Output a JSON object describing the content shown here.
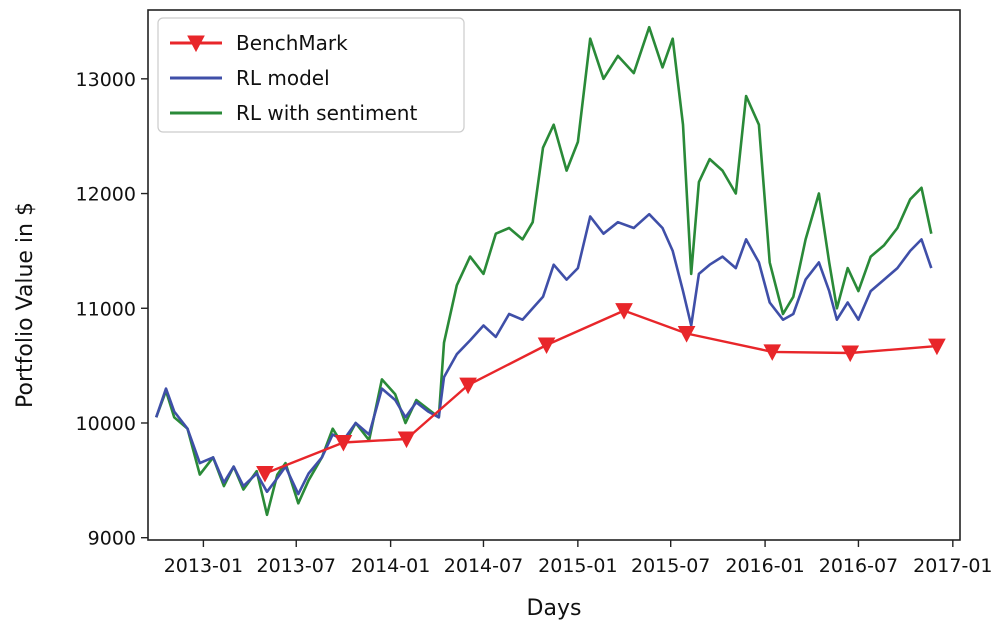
{
  "chart_data": {
    "type": "line",
    "title": "",
    "xlabel": "Days",
    "ylabel": "Portfolio Value in $",
    "x_ticks": [
      "2013-01",
      "2013-07",
      "2014-01",
      "2014-07",
      "2015-01",
      "2015-07",
      "2016-01",
      "2016-07",
      "2017-01"
    ],
    "y_ticks": [
      9000,
      10000,
      11000,
      12000,
      13000
    ],
    "xlim": [
      "2012-09-15",
      "2017-01-15"
    ],
    "ylim": [
      8980,
      13600
    ],
    "grid": false,
    "legend_position": "top-left",
    "series": [
      {
        "name": "BenchMark",
        "color": "#e8262a",
        "marker": "triangle-down",
        "points": [
          [
            "2013-05-01",
            9560
          ],
          [
            "2013-10-01",
            9830
          ],
          [
            "2014-02-01",
            9860
          ],
          [
            "2014-06-01",
            10330
          ],
          [
            "2014-11-01",
            10680
          ],
          [
            "2015-04-01",
            10980
          ],
          [
            "2015-08-01",
            10780
          ],
          [
            "2016-01-15",
            10620
          ],
          [
            "2016-06-15",
            10610
          ],
          [
            "2016-12-01",
            10670
          ]
        ]
      },
      {
        "name": "RL model",
        "color": "#3f4fa8",
        "marker": "none",
        "points": [
          [
            "2012-10-01",
            10050
          ],
          [
            "2012-10-20",
            10300
          ],
          [
            "2012-11-05",
            10100
          ],
          [
            "2012-12-01",
            9950
          ],
          [
            "2012-12-25",
            9650
          ],
          [
            "2013-01-20",
            9700
          ],
          [
            "2013-02-10",
            9480
          ],
          [
            "2013-03-01",
            9620
          ],
          [
            "2013-03-20",
            9450
          ],
          [
            "2013-04-15",
            9560
          ],
          [
            "2013-05-05",
            9400
          ],
          [
            "2013-05-25",
            9520
          ],
          [
            "2013-06-10",
            9620
          ],
          [
            "2013-07-05",
            9380
          ],
          [
            "2013-07-25",
            9560
          ],
          [
            "2013-08-20",
            9700
          ],
          [
            "2013-09-10",
            9900
          ],
          [
            "2013-10-01",
            9850
          ],
          [
            "2013-10-25",
            10000
          ],
          [
            "2013-11-20",
            9900
          ],
          [
            "2013-12-15",
            10300
          ],
          [
            "2014-01-10",
            10200
          ],
          [
            "2014-01-30",
            10050
          ],
          [
            "2014-02-20",
            10180
          ],
          [
            "2014-03-15",
            10100
          ],
          [
            "2014-04-05",
            10050
          ],
          [
            "2014-04-15",
            10400
          ],
          [
            "2014-05-10",
            10600
          ],
          [
            "2014-06-05",
            10720
          ],
          [
            "2014-07-01",
            10850
          ],
          [
            "2014-07-25",
            10750
          ],
          [
            "2014-08-20",
            10950
          ],
          [
            "2014-09-15",
            10900
          ],
          [
            "2014-10-05",
            11000
          ],
          [
            "2014-10-25",
            11100
          ],
          [
            "2014-11-15",
            11380
          ],
          [
            "2014-12-10",
            11250
          ],
          [
            "2015-01-01",
            11350
          ],
          [
            "2015-01-25",
            11800
          ],
          [
            "2015-02-20",
            11650
          ],
          [
            "2015-03-20",
            11750
          ],
          [
            "2015-04-20",
            11700
          ],
          [
            "2015-05-20",
            11820
          ],
          [
            "2015-06-15",
            11700
          ],
          [
            "2015-07-05",
            11500
          ],
          [
            "2015-07-25",
            11150
          ],
          [
            "2015-08-10",
            10850
          ],
          [
            "2015-08-25",
            11300
          ],
          [
            "2015-09-15",
            11380
          ],
          [
            "2015-10-10",
            11450
          ],
          [
            "2015-11-05",
            11350
          ],
          [
            "2015-11-25",
            11600
          ],
          [
            "2015-12-20",
            11400
          ],
          [
            "2016-01-10",
            11050
          ],
          [
            "2016-02-05",
            10900
          ],
          [
            "2016-02-25",
            10950
          ],
          [
            "2016-03-20",
            11250
          ],
          [
            "2016-04-15",
            11400
          ],
          [
            "2016-05-05",
            11150
          ],
          [
            "2016-05-20",
            10900
          ],
          [
            "2016-06-10",
            11050
          ],
          [
            "2016-07-01",
            10900
          ],
          [
            "2016-07-25",
            11150
          ],
          [
            "2016-08-20",
            11250
          ],
          [
            "2016-09-15",
            11350
          ],
          [
            "2016-10-10",
            11500
          ],
          [
            "2016-11-01",
            11600
          ],
          [
            "2016-11-20",
            11350
          ]
        ]
      },
      {
        "name": "RL with sentiment",
        "color": "#2a8a38",
        "marker": "none",
        "points": [
          [
            "2012-10-01",
            10050
          ],
          [
            "2012-10-20",
            10280
          ],
          [
            "2012-11-05",
            10050
          ],
          [
            "2012-12-01",
            9950
          ],
          [
            "2012-12-25",
            9550
          ],
          [
            "2013-01-20",
            9700
          ],
          [
            "2013-02-10",
            9450
          ],
          [
            "2013-03-01",
            9620
          ],
          [
            "2013-03-20",
            9420
          ],
          [
            "2013-04-15",
            9580
          ],
          [
            "2013-05-05",
            9200
          ],
          [
            "2013-05-25",
            9550
          ],
          [
            "2013-06-10",
            9650
          ],
          [
            "2013-07-05",
            9300
          ],
          [
            "2013-07-25",
            9500
          ],
          [
            "2013-08-20",
            9700
          ],
          [
            "2013-09-10",
            9950
          ],
          [
            "2013-10-01",
            9800
          ],
          [
            "2013-10-25",
            10000
          ],
          [
            "2013-11-20",
            9850
          ],
          [
            "2013-12-15",
            10380
          ],
          [
            "2014-01-10",
            10250
          ],
          [
            "2014-01-30",
            10000
          ],
          [
            "2014-02-20",
            10200
          ],
          [
            "2014-03-15",
            10120
          ],
          [
            "2014-04-05",
            10050
          ],
          [
            "2014-04-15",
            10700
          ],
          [
            "2014-05-10",
            11200
          ],
          [
            "2014-06-05",
            11450
          ],
          [
            "2014-07-01",
            11300
          ],
          [
            "2014-07-25",
            11650
          ],
          [
            "2014-08-20",
            11700
          ],
          [
            "2014-09-15",
            11600
          ],
          [
            "2014-10-05",
            11750
          ],
          [
            "2014-10-25",
            12400
          ],
          [
            "2014-11-15",
            12600
          ],
          [
            "2014-12-10",
            12200
          ],
          [
            "2015-01-01",
            12450
          ],
          [
            "2015-01-25",
            13350
          ],
          [
            "2015-02-20",
            13000
          ],
          [
            "2015-03-20",
            13200
          ],
          [
            "2015-04-20",
            13050
          ],
          [
            "2015-05-20",
            13450
          ],
          [
            "2015-06-15",
            13100
          ],
          [
            "2015-07-05",
            13350
          ],
          [
            "2015-07-25",
            12600
          ],
          [
            "2015-08-10",
            11300
          ],
          [
            "2015-08-25",
            12100
          ],
          [
            "2015-09-15",
            12300
          ],
          [
            "2015-10-10",
            12200
          ],
          [
            "2015-11-05",
            12000
          ],
          [
            "2015-11-25",
            12850
          ],
          [
            "2015-12-20",
            12600
          ],
          [
            "2016-01-10",
            11400
          ],
          [
            "2016-02-05",
            10950
          ],
          [
            "2016-02-25",
            11100
          ],
          [
            "2016-03-20",
            11600
          ],
          [
            "2016-04-15",
            12000
          ],
          [
            "2016-05-05",
            11400
          ],
          [
            "2016-05-20",
            11000
          ],
          [
            "2016-06-10",
            11350
          ],
          [
            "2016-07-01",
            11150
          ],
          [
            "2016-07-25",
            11450
          ],
          [
            "2016-08-20",
            11550
          ],
          [
            "2016-09-15",
            11700
          ],
          [
            "2016-10-10",
            11950
          ],
          [
            "2016-11-01",
            12050
          ],
          [
            "2016-11-20",
            11650
          ]
        ]
      }
    ]
  }
}
